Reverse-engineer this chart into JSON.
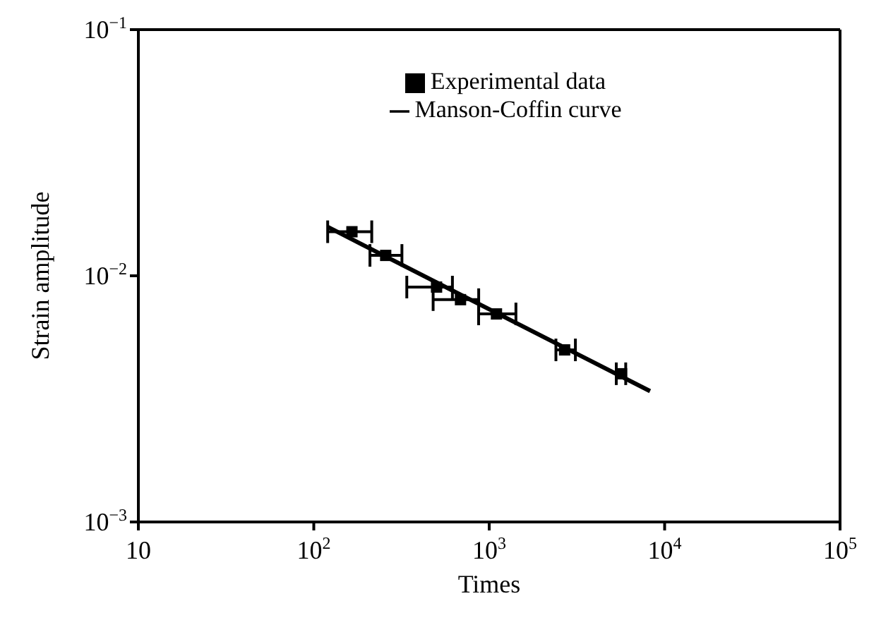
{
  "chart_data": {
    "type": "scatter",
    "xlabel": "Times",
    "ylabel": "Strain amplitude",
    "log": "xy",
    "grid": false,
    "legend": "top",
    "xlim": [
      10,
      100000
    ],
    "ylim": [
      0.001,
      0.1
    ],
    "xticks": [
      10,
      {
        "value": 100,
        "label": "10$^{2}$"
      },
      {
        "value": 1000,
        "label": "10$^{3}$"
      },
      {
        "value": 10000,
        "label": "10$^{4}$"
      },
      {
        "value": 100000,
        "label": "10$^{5}$"
      }
    ],
    "yticks": [
      {
        "value": 0.001,
        "label": "10$^{−3}$"
      },
      {
        "value": 0.01,
        "label": "10$^{−2}$"
      },
      {
        "value": 0.1,
        "label": "10$^{−1}$"
      }
    ],
    "series": [
      {
        "name": "Experimental data",
        "type": "scatter",
        "marker": "square",
        "color": "#000000",
        "x": [
          165,
          257,
          501,
          686,
          1100,
          2690,
          5680
        ],
        "values": [
          0.0151,
          0.0121,
          0.009,
          0.008,
          0.007,
          0.005,
          0.004
        ],
        "xerrors": [
          [
            120,
            214
          ],
          [
            209,
            318
          ],
          [
            339,
            617
          ],
          [
            479,
            871
          ],
          [
            870,
            1420
          ],
          [
            2400,
            3100
          ],
          [
            5300,
            6000
          ]
        ]
      },
      {
        "name": "Manson-Coffin curve",
        "type": "line",
        "marker": "none",
        "line_style": "solid",
        "color": "#000000",
        "x": [
          120,
          8260
        ],
        "values": [
          0.0158,
          0.0034
        ]
      }
    ]
  }
}
